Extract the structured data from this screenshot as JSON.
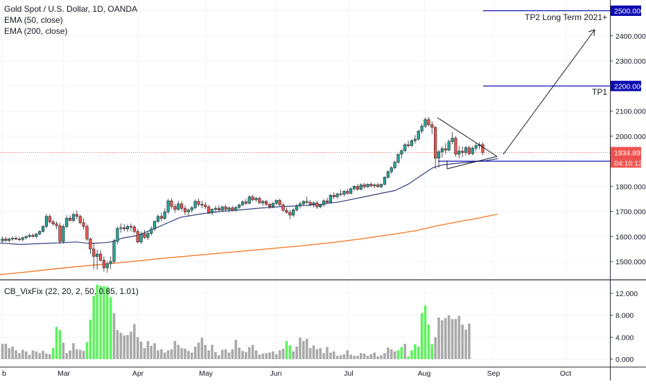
{
  "chart_data": [
    {
      "type": "candlestick",
      "title": "Gold Spot / U.S. Dollar, 1D, OANDA",
      "indicators": [
        "EMA (50, close)",
        "EMA (200, close)"
      ],
      "x_ticks": [
        "b",
        "Mar",
        "Apr",
        "May",
        "Jun",
        "Jul",
        "Aug",
        "Sep",
        "Oct"
      ],
      "y_ticks": [
        "1500.000",
        "1600.000",
        "1700.000",
        "1800.000",
        "1900.000",
        "2000.000",
        "2100.000",
        "2200.000",
        "2300.000",
        "2400.000",
        "2500.000"
      ],
      "ylim": [
        1430,
        2535
      ],
      "current_price": "1934.897",
      "countdown": "04:10:12",
      "ohlc": [
        [
          1582,
          1600,
          1575,
          1590
        ],
        [
          1590,
          1598,
          1578,
          1584
        ],
        [
          1584,
          1596,
          1576,
          1590
        ],
        [
          1590,
          1600,
          1582,
          1593
        ],
        [
          1593,
          1601,
          1585,
          1590
        ],
        [
          1590,
          1598,
          1582,
          1588
        ],
        [
          1588,
          1600,
          1580,
          1595
        ],
        [
          1595,
          1605,
          1588,
          1600
        ],
        [
          1600,
          1612,
          1594,
          1604
        ],
        [
          1604,
          1612,
          1596,
          1600
        ],
        [
          1600,
          1614,
          1592,
          1610
        ],
        [
          1610,
          1625,
          1604,
          1620
        ],
        [
          1620,
          1645,
          1615,
          1640
        ],
        [
          1640,
          1690,
          1632,
          1680
        ],
        [
          1680,
          1688,
          1652,
          1658
        ],
        [
          1658,
          1668,
          1643,
          1650
        ],
        [
          1650,
          1660,
          1630,
          1643
        ],
        [
          1643,
          1655,
          1570,
          1580
        ],
        [
          1580,
          1648,
          1572,
          1640
        ],
        [
          1640,
          1685,
          1632,
          1673
        ],
        [
          1673,
          1684,
          1660,
          1664
        ],
        [
          1664,
          1695,
          1658,
          1688
        ],
        [
          1688,
          1704,
          1668,
          1680
        ],
        [
          1680,
          1688,
          1648,
          1655
        ],
        [
          1655,
          1672,
          1628,
          1640
        ],
        [
          1640,
          1648,
          1582,
          1590
        ],
        [
          1590,
          1596,
          1530,
          1550
        ],
        [
          1550,
          1576,
          1470,
          1520
        ],
        [
          1520,
          1548,
          1468,
          1530
        ],
        [
          1530,
          1545,
          1500,
          1505
        ],
        [
          1505,
          1520,
          1460,
          1475
        ],
        [
          1475,
          1502,
          1455,
          1492
        ],
        [
          1492,
          1520,
          1470,
          1500
        ],
        [
          1500,
          1590,
          1492,
          1580
        ],
        [
          1580,
          1640,
          1570,
          1632
        ],
        [
          1632,
          1652,
          1615,
          1635
        ],
        [
          1635,
          1650,
          1620,
          1630
        ],
        [
          1630,
          1648,
          1618,
          1640
        ],
        [
          1640,
          1652,
          1620,
          1638
        ],
        [
          1638,
          1646,
          1612,
          1620
        ],
        [
          1620,
          1630,
          1572,
          1578
        ],
        [
          1578,
          1620,
          1570,
          1610
        ],
        [
          1610,
          1626,
          1590,
          1596
        ],
        [
          1596,
          1620,
          1586,
          1612
        ],
        [
          1612,
          1640,
          1604,
          1630
        ],
        [
          1630,
          1664,
          1622,
          1660
        ],
        [
          1660,
          1688,
          1654,
          1680
        ],
        [
          1680,
          1695,
          1660,
          1672
        ],
        [
          1672,
          1712,
          1666,
          1698
        ],
        [
          1698,
          1750,
          1690,
          1742
        ],
        [
          1742,
          1752,
          1710,
          1720
        ],
        [
          1720,
          1730,
          1696,
          1708
        ],
        [
          1708,
          1742,
          1702,
          1730
        ],
        [
          1730,
          1740,
          1700,
          1712
        ],
        [
          1712,
          1724,
          1685,
          1698
        ],
        [
          1698,
          1712,
          1680,
          1705
        ],
        [
          1705,
          1720,
          1695,
          1715
        ],
        [
          1715,
          1748,
          1708,
          1740
        ],
        [
          1740,
          1752,
          1720,
          1728
        ],
        [
          1728,
          1742,
          1712,
          1725
        ],
        [
          1725,
          1738,
          1710,
          1718
        ],
        [
          1718,
          1726,
          1690,
          1695
        ],
        [
          1695,
          1712,
          1685,
          1708
        ],
        [
          1708,
          1722,
          1698,
          1712
        ],
        [
          1712,
          1724,
          1702,
          1705
        ],
        [
          1705,
          1722,
          1698,
          1718
        ],
        [
          1718,
          1726,
          1700,
          1708
        ],
        [
          1708,
          1720,
          1696,
          1714
        ],
        [
          1714,
          1722,
          1700,
          1704
        ],
        [
          1704,
          1720,
          1698,
          1716
        ],
        [
          1716,
          1730,
          1710,
          1726
        ],
        [
          1726,
          1744,
          1720,
          1738
        ],
        [
          1738,
          1750,
          1726,
          1732
        ],
        [
          1732,
          1764,
          1728,
          1758
        ],
        [
          1758,
          1766,
          1740,
          1746
        ],
        [
          1746,
          1758,
          1738,
          1752
        ],
        [
          1752,
          1758,
          1730,
          1734
        ],
        [
          1734,
          1745,
          1722,
          1740
        ],
        [
          1740,
          1746,
          1722,
          1728
        ],
        [
          1728,
          1734,
          1710,
          1718
        ],
        [
          1718,
          1736,
          1712,
          1732
        ],
        [
          1732,
          1748,
          1724,
          1744
        ],
        [
          1744,
          1750,
          1722,
          1726
        ],
        [
          1726,
          1732,
          1700,
          1704
        ],
        [
          1704,
          1716,
          1690,
          1696
        ],
        [
          1696,
          1706,
          1668,
          1685
        ],
        [
          1685,
          1712,
          1678,
          1706
        ],
        [
          1706,
          1730,
          1700,
          1722
        ],
        [
          1722,
          1738,
          1712,
          1730
        ],
        [
          1730,
          1744,
          1722,
          1740
        ],
        [
          1740,
          1758,
          1730,
          1736
        ],
        [
          1736,
          1746,
          1722,
          1728
        ],
        [
          1728,
          1740,
          1716,
          1734
        ],
        [
          1734,
          1742,
          1710,
          1718
        ],
        [
          1718,
          1730,
          1712,
          1726
        ],
        [
          1726,
          1748,
          1720,
          1742
        ],
        [
          1742,
          1754,
          1730,
          1736
        ],
        [
          1736,
          1770,
          1732,
          1764
        ],
        [
          1764,
          1776,
          1750,
          1758
        ],
        [
          1758,
          1774,
          1752,
          1770
        ],
        [
          1770,
          1786,
          1760,
          1768
        ],
        [
          1768,
          1784,
          1760,
          1780
        ],
        [
          1780,
          1790,
          1766,
          1772
        ],
        [
          1772,
          1796,
          1768,
          1790
        ],
        [
          1790,
          1804,
          1782,
          1800
        ],
        [
          1800,
          1810,
          1782,
          1788
        ],
        [
          1788,
          1812,
          1784,
          1806
        ],
        [
          1806,
          1814,
          1790,
          1798
        ],
        [
          1798,
          1812,
          1794,
          1808
        ],
        [
          1808,
          1816,
          1796,
          1802
        ],
        [
          1802,
          1812,
          1792,
          1806
        ],
        [
          1806,
          1814,
          1794,
          1798
        ],
        [
          1798,
          1812,
          1792,
          1808
        ],
        [
          1808,
          1840,
          1804,
          1836
        ],
        [
          1836,
          1864,
          1830,
          1858
        ],
        [
          1858,
          1880,
          1850,
          1874
        ],
        [
          1874,
          1902,
          1868,
          1896
        ],
        [
          1896,
          1930,
          1890,
          1928
        ],
        [
          1928,
          1948,
          1910,
          1942
        ],
        [
          1942,
          1972,
          1936,
          1966
        ],
        [
          1966,
          1982,
          1954,
          1962
        ],
        [
          1962,
          1988,
          1958,
          1982
        ],
        [
          1982,
          2004,
          1970,
          1988
        ],
        [
          1988,
          2024,
          1982,
          2020
        ],
        [
          2020,
          2050,
          2010,
          2040
        ],
        [
          2040,
          2074,
          2032,
          2066
        ],
        [
          2066,
          2076,
          2038,
          2046
        ],
        [
          2046,
          2060,
          2008,
          2035
        ],
        [
          2035,
          2040,
          1870,
          1912
        ],
        [
          1912,
          1945,
          1875,
          1938
        ],
        [
          1938,
          1960,
          1914,
          1950
        ],
        [
          1950,
          1972,
          1928,
          1944
        ],
        [
          1944,
          1986,
          1940,
          1978
        ],
        [
          1978,
          2016,
          1968,
          1992
        ],
        [
          1992,
          2000,
          1918,
          1928
        ],
        [
          1928,
          1960,
          1912,
          1940
        ],
        [
          1940,
          1958,
          1916,
          1935
        ],
        [
          1935,
          1962,
          1922,
          1954
        ],
        [
          1954,
          1962,
          1924,
          1930
        ],
        [
          1930,
          1960,
          1924,
          1952
        ],
        [
          1952,
          1972,
          1940,
          1962
        ],
        [
          1962,
          1976,
          1948,
          1966
        ],
        [
          1966,
          1976,
          1924,
          1934.9
        ]
      ],
      "ema50": [
        [
          0,
          1574
        ],
        [
          30,
          1568
        ],
        [
          60,
          1572
        ],
        [
          90,
          1575
        ],
        [
          110,
          1578
        ],
        [
          130,
          1572
        ],
        [
          150,
          1575
        ],
        [
          160,
          1578
        ],
        [
          175,
          1592
        ],
        [
          200,
          1605
        ],
        [
          230,
          1640
        ],
        [
          260,
          1676
        ],
        [
          290,
          1690
        ],
        [
          320,
          1700
        ],
        [
          350,
          1707
        ],
        [
          380,
          1714
        ],
        [
          400,
          1718
        ],
        [
          430,
          1722
        ],
        [
          460,
          1727
        ],
        [
          490,
          1738
        ],
        [
          520,
          1755
        ],
        [
          550,
          1772
        ],
        [
          570,
          1783
        ],
        [
          590,
          1810
        ],
        [
          610,
          1848
        ],
        [
          625,
          1875
        ],
        [
          640,
          1886
        ],
        [
          660,
          1892
        ],
        [
          680,
          1897
        ],
        [
          700,
          1902
        ],
        [
          718,
          1910
        ]
      ],
      "ema200": [
        [
          0,
          1448
        ],
        [
          40,
          1459
        ],
        [
          80,
          1471
        ],
        [
          120,
          1482
        ],
        [
          160,
          1492
        ],
        [
          200,
          1503
        ],
        [
          240,
          1514
        ],
        [
          280,
          1524
        ],
        [
          320,
          1534
        ],
        [
          360,
          1544
        ],
        [
          400,
          1554
        ],
        [
          440,
          1564
        ],
        [
          480,
          1576
        ],
        [
          520,
          1590
        ],
        [
          560,
          1606
        ],
        [
          600,
          1623
        ],
        [
          630,
          1642
        ],
        [
          660,
          1658
        ],
        [
          690,
          1673
        ],
        [
          718,
          1689
        ]
      ],
      "levels": [
        {
          "value": "2500.000",
          "label": "TP2 Long Term 2021+",
          "color": "#0c0cb0"
        },
        {
          "value": "2200.000",
          "label": "TP1",
          "color": "#0c0cb0"
        },
        {
          "value": "1900.000",
          "label": "",
          "color": "#0c0cb0"
        }
      ],
      "colors": {
        "up": "#26a69a",
        "down": "#ef5350",
        "ema50": "#2f3d7d",
        "ema200": "#f57c2e",
        "level": "#0c0cb0",
        "current": "#ef5350"
      }
    },
    {
      "type": "bar",
      "title": "CB_VixFix (22, 20, 2, 50, 0.85, 1.01)",
      "y_ticks": [
        "0.000",
        "4.000",
        "8.000",
        "12.000"
      ],
      "ylim": [
        -0.5,
        13.5
      ],
      "values": [
        2.8,
        2.8,
        2.0,
        2.3,
        1.6,
        1.1,
        1.7,
        1.4,
        0.8,
        1.6,
        1.4,
        1.1,
        1.5,
        1.0,
        0.9,
        2.0,
        5.9,
        5.3,
        3.0,
        1.1,
        1.6,
        2.9,
        1.8,
        1.7,
        1.5,
        3.1,
        7.2,
        11.5,
        13.6,
        13.4,
        13.3,
        13.2,
        11.3,
        8.4,
        5.3,
        4.8,
        4.3,
        4.4,
        5.0,
        6.4,
        4.0,
        3.2,
        2.0,
        3.3,
        2.4,
        2.9,
        1.6,
        1.8,
        1.2,
        1.6,
        1.8,
        3.3,
        2.6,
        2.0,
        1.9,
        1.5,
        1.2,
        2.3,
        3.0,
        3.9,
        2.6,
        1.6,
        2.6,
        1.3,
        0.7,
        1.7,
        1.8,
        1.2,
        1.8,
        3.5,
        2.1,
        1.5,
        1.3,
        2.2,
        2.6,
        1.6,
        0.8,
        1.0,
        1.1,
        1.2,
        1.4,
        0.9,
        1.6,
        1.9,
        3.3,
        2.5,
        1.4,
        2.3,
        3.9,
        3.3,
        3.7,
        2.0,
        2.5,
        1.8,
        2.0,
        1.1,
        2.2,
        1.2,
        1.4,
        0.6,
        0.7,
        0.9,
        1.6,
        0.8,
        0.6,
        0.6,
        1.1,
        1.0,
        0.6,
        0.9,
        1.2,
        0.5,
        0.7,
        1.1,
        2.1,
        1.8,
        1.4,
        1.6,
        2.2,
        2.8,
        0.5,
        1.6,
        2.7,
        2.3,
        8.4,
        9.8,
        6.3,
        2.7,
        4.0,
        7.6,
        7.1,
        7.5,
        8.0,
        7.3,
        7.3,
        7.9,
        6.3,
        5.4,
        6.5
      ],
      "highlighted": [
        15,
        16,
        17,
        25,
        26,
        27,
        28,
        29,
        30,
        31,
        32,
        84,
        85,
        117,
        118,
        120,
        121,
        122,
        123,
        124,
        125,
        126,
        127
      ],
      "colors": {
        "normal": "#a9a9a9",
        "highlight": "#5ef25e"
      }
    }
  ]
}
